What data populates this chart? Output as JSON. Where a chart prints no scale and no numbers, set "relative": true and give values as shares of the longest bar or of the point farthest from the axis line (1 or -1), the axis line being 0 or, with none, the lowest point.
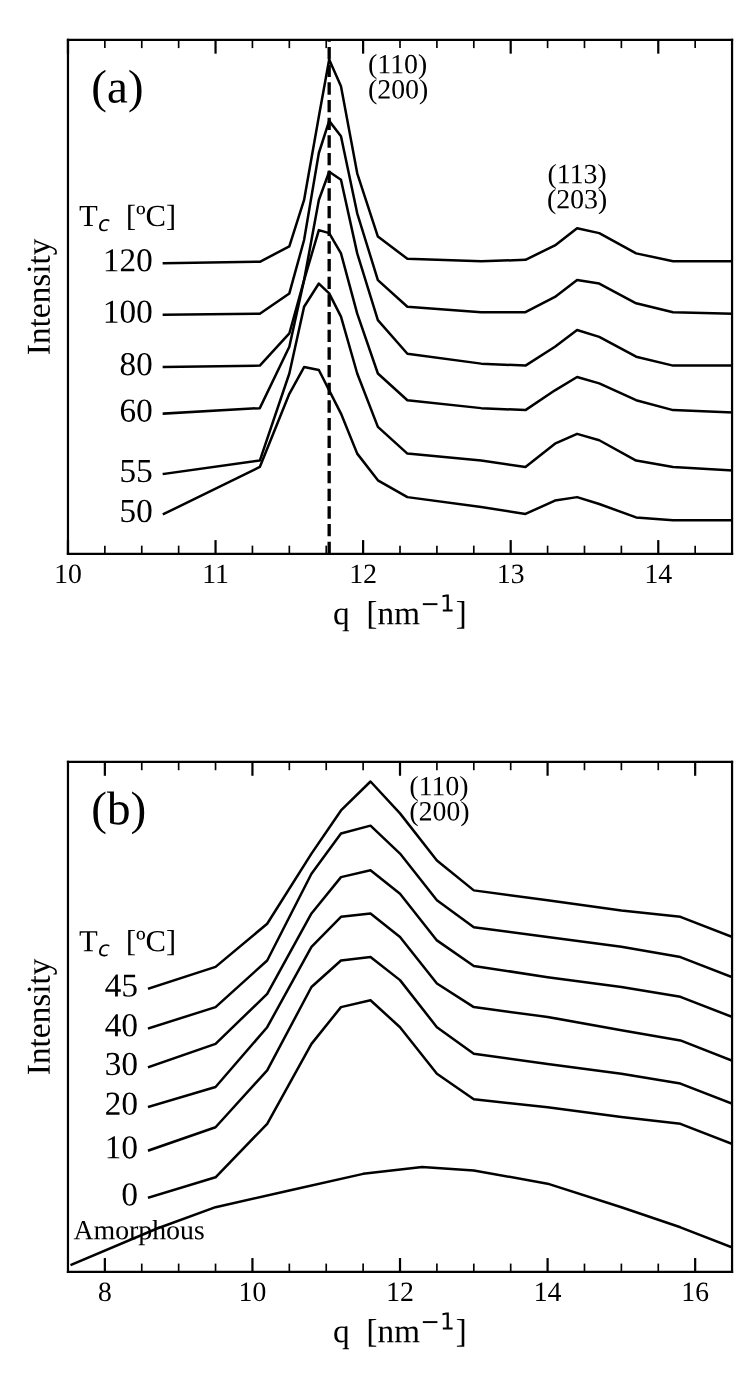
{
  "chart_data": [
    {
      "type": "line",
      "relative": true,
      "xlabel": "q  [nm$^{−1}$]",
      "ylabel": "Intensity",
      "legend_title": "T$_{c}$  [ºC]",
      "xlim": [
        10,
        14.5
      ],
      "xticks": [
        10,
        11,
        12,
        13,
        14
      ],
      "tick_labels": "x",
      "grid": false,
      "legend": false,
      "marker": "none",
      "line_style": "solid",
      "x": [
        10.65,
        11.3,
        11.5,
        11.6,
        11.7,
        11.77,
        11.85,
        11.96,
        12.1,
        12.3,
        12.8,
        13.1,
        13.3,
        13.45,
        13.6,
        13.85,
        14.1,
        14.5
      ],
      "series": [
        {
          "name": "120",
          "color": "#000000",
          "values": [
            0.588,
            0.591,
            0.622,
            0.716,
            0.885,
            1,
            0.946,
            0.77,
            0.642,
            0.597,
            0.592,
            0.595,
            0.624,
            0.659,
            0.649,
            0.608,
            0.592,
            0.592
          ]
        },
        {
          "name": "100",
          "color": "#000000",
          "values": [
            0.484,
            0.486,
            0.527,
            0.635,
            0.811,
            0.876,
            0.845,
            0.689,
            0.554,
            0.5,
            0.489,
            0.489,
            0.52,
            0.554,
            0.547,
            0.507,
            0.489,
            0.486
          ]
        },
        {
          "name": "80",
          "color": "#000000",
          "values": [
            0.378,
            0.381,
            0.446,
            0.554,
            0.716,
            0.773,
            0.757,
            0.608,
            0.473,
            0.405,
            0.385,
            0.381,
            0.419,
            0.453,
            0.439,
            0.399,
            0.381,
            0.381
          ]
        },
        {
          "name": "60",
          "color": "#000000",
          "values": [
            0.284,
            0.295,
            0.419,
            0.554,
            0.655,
            0.649,
            0.608,
            0.486,
            0.365,
            0.311,
            0.295,
            0.291,
            0.331,
            0.358,
            0.345,
            0.311,
            0.291,
            0.286
          ]
        },
        {
          "name": "55",
          "color": "#000000",
          "values": [
            0.162,
            0.189,
            0.365,
            0.5,
            0.547,
            0.527,
            0.48,
            0.365,
            0.257,
            0.203,
            0.189,
            0.176,
            0.223,
            0.243,
            0.23,
            0.189,
            0.176,
            0.169
          ]
        },
        {
          "name": "50",
          "color": "#000000",
          "values": [
            0.081,
            0.176,
            0.324,
            0.378,
            0.372,
            0.331,
            0.284,
            0.203,
            0.149,
            0.115,
            0.095,
            0.081,
            0.108,
            0.115,
            0.101,
            0.074,
            0.068,
            0.068
          ]
        }
      ],
      "ref_lines": [
        {
          "axis": "x",
          "value": 11.77,
          "color": "#000000",
          "line_style": "dashed"
        }
      ],
      "annotations": [
        "(a)",
        "(110)\n(200)",
        "(113)\n(203)"
      ]
    },
    {
      "type": "line",
      "relative": true,
      "xlabel": "q  [nm$^{−1}$]",
      "ylabel": "Intensity",
      "legend_title": "T$_{c}$  [ºC]",
      "xlim": [
        7.5,
        16.5
      ],
      "xticks": [
        8,
        10,
        12,
        14,
        16
      ],
      "tick_labels": "x",
      "grid": false,
      "legend": false,
      "marker": "none",
      "line_style": "solid",
      "x": [
        8.6,
        9.5,
        10.2,
        10.8,
        11.2,
        11.6,
        12.0,
        12.5,
        13.0,
        14.0,
        15.0,
        15.8,
        16.5
      ],
      "series": [
        {
          "name": "45",
          "color": "#000000",
          "values": [
            0.578,
            0.622,
            0.71,
            0.853,
            0.941,
            1,
            0.935,
            0.839,
            0.778,
            0.758,
            0.737,
            0.724,
            0.683
          ]
        },
        {
          "name": "40",
          "color": "#000000",
          "values": [
            0.497,
            0.54,
            0.635,
            0.812,
            0.894,
            0.91,
            0.853,
            0.758,
            0.703,
            0.683,
            0.663,
            0.642,
            0.601
          ]
        },
        {
          "name": "30",
          "color": "#000000",
          "values": [
            0.418,
            0.465,
            0.567,
            0.731,
            0.805,
            0.819,
            0.771,
            0.676,
            0.624,
            0.601,
            0.581,
            0.561,
            0.52
          ]
        },
        {
          "name": "20",
          "color": "#000000",
          "values": [
            0.337,
            0.377,
            0.499,
            0.663,
            0.724,
            0.731,
            0.683,
            0.588,
            0.54,
            0.52,
            0.493,
            0.472,
            0.431
          ]
        },
        {
          "name": "10",
          "color": "#000000",
          "values": [
            0.248,
            0.295,
            0.411,
            0.581,
            0.635,
            0.642,
            0.595,
            0.499,
            0.445,
            0.424,
            0.404,
            0.384,
            0.343
          ]
        },
        {
          "name": "0",
          "color": "#000000",
          "values": [
            0.152,
            0.193,
            0.302,
            0.465,
            0.54,
            0.554,
            0.499,
            0.404,
            0.352,
            0.336,
            0.316,
            0.302,
            0.261
          ]
        },
        {
          "name": "Amorphous",
          "color": "#000000",
          "x": [
            7.55,
            8.7,
            9.5,
            10.5,
            11.5,
            12.3,
            13.0,
            14.0,
            15.0,
            15.8,
            16.5
          ],
          "values": [
            0.015,
            0.088,
            0.132,
            0.166,
            0.2,
            0.214,
            0.207,
            0.18,
            0.132,
            0.091,
            0.05
          ]
        }
      ],
      "annotations": [
        "(b)",
        "(110)\n(200)"
      ]
    }
  ]
}
